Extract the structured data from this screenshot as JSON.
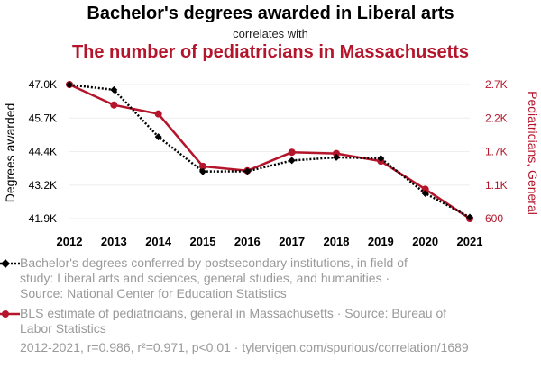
{
  "header": {
    "title": "Bachelor's degrees awarded in Liberal arts",
    "subtitle": "correlates with",
    "title2": "The number of pediatricians in Massachusetts"
  },
  "colors": {
    "series1": "#000000",
    "series2": "#b5152b",
    "tick": "#000000",
    "grid": "#eeeeee"
  },
  "chart_data": {
    "type": "line",
    "x": [
      2012,
      2013,
      2014,
      2015,
      2016,
      2017,
      2018,
      2019,
      2020,
      2021
    ],
    "xticks": [
      "2012",
      "2013",
      "2014",
      "2015",
      "2016",
      "2017",
      "2018",
      "2019",
      "2020",
      "2021"
    ],
    "ylabel_left": "Degrees awarded",
    "ylabel_right": "Pediatricians, General",
    "yticks_left": [
      "47.0K",
      "45.7K",
      "44.4K",
      "43.2K",
      "41.9K"
    ],
    "yticks_right": [
      "2.7K",
      "2.2K",
      "1.7K",
      "1.1K",
      "600"
    ],
    "ylim_left": [
      41900,
      47000
    ],
    "ylim_right": [
      600,
      2700
    ],
    "grid": true,
    "series": [
      {
        "name": "Bachelor's degrees conferred by postsecondary institutions, in field of study: Liberal arts and sciences, general studies, and humanities · Source: National Center for Education Statistics",
        "axis": "left",
        "style": "dotted",
        "marker": "diamond",
        "values": [
          46990,
          46800,
          45010,
          43690,
          43700,
          44110,
          44230,
          44190,
          42860,
          41950
        ]
      },
      {
        "name": "BLS estimate of pediatricians, general in Massachusetts · Source: Bureau of Labor Statistics",
        "axis": "right",
        "style": "solid",
        "marker": "circle",
        "values": [
          2700,
          2380,
          2240,
          1420,
          1350,
          1640,
          1620,
          1500,
          1060,
          600
        ]
      }
    ]
  },
  "legend": {
    "item1_line1": "Bachelor's degrees conferred by postsecondary institutions, in field of",
    "item1_line2": "study: Liberal arts and sciences, general studies, and humanities ·",
    "item1_line3": "Source: National Center for Education Statistics",
    "item2_line1": "BLS estimate of pediatricians, general in Massachusetts · Source: Bureau of",
    "item2_line2": "Labor Statistics"
  },
  "footer": {
    "text": "2012-2021, r=0.986, r²=0.971, p<0.01 · tylervigen.com/spurious/correlation/1689"
  }
}
